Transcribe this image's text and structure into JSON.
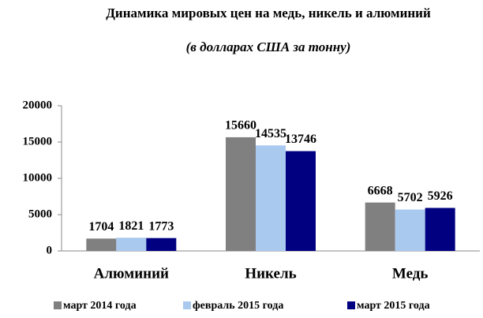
{
  "chart_data": {
    "type": "bar",
    "title": "Динамика мировых цен на медь, никель и алюминий",
    "subtitle": "(в долларах США за тонну)",
    "categories": [
      "Алюминий",
      "Никель",
      "Медь"
    ],
    "series": [
      {
        "name": "март 2014 года",
        "color": "#808080",
        "values": [
          1704,
          15660,
          6668
        ]
      },
      {
        "name": "февраль 2015 года",
        "color": "#a9c9ef",
        "values": [
          1821,
          14535,
          5702
        ]
      },
      {
        "name": "март 2015 года",
        "color": "#000080",
        "values": [
          1773,
          13746,
          5926
        ]
      }
    ],
    "ylim": [
      0,
      20000
    ],
    "yticks": [
      0,
      5000,
      10000,
      15000,
      20000
    ],
    "grid": false,
    "legend": "bottom"
  }
}
